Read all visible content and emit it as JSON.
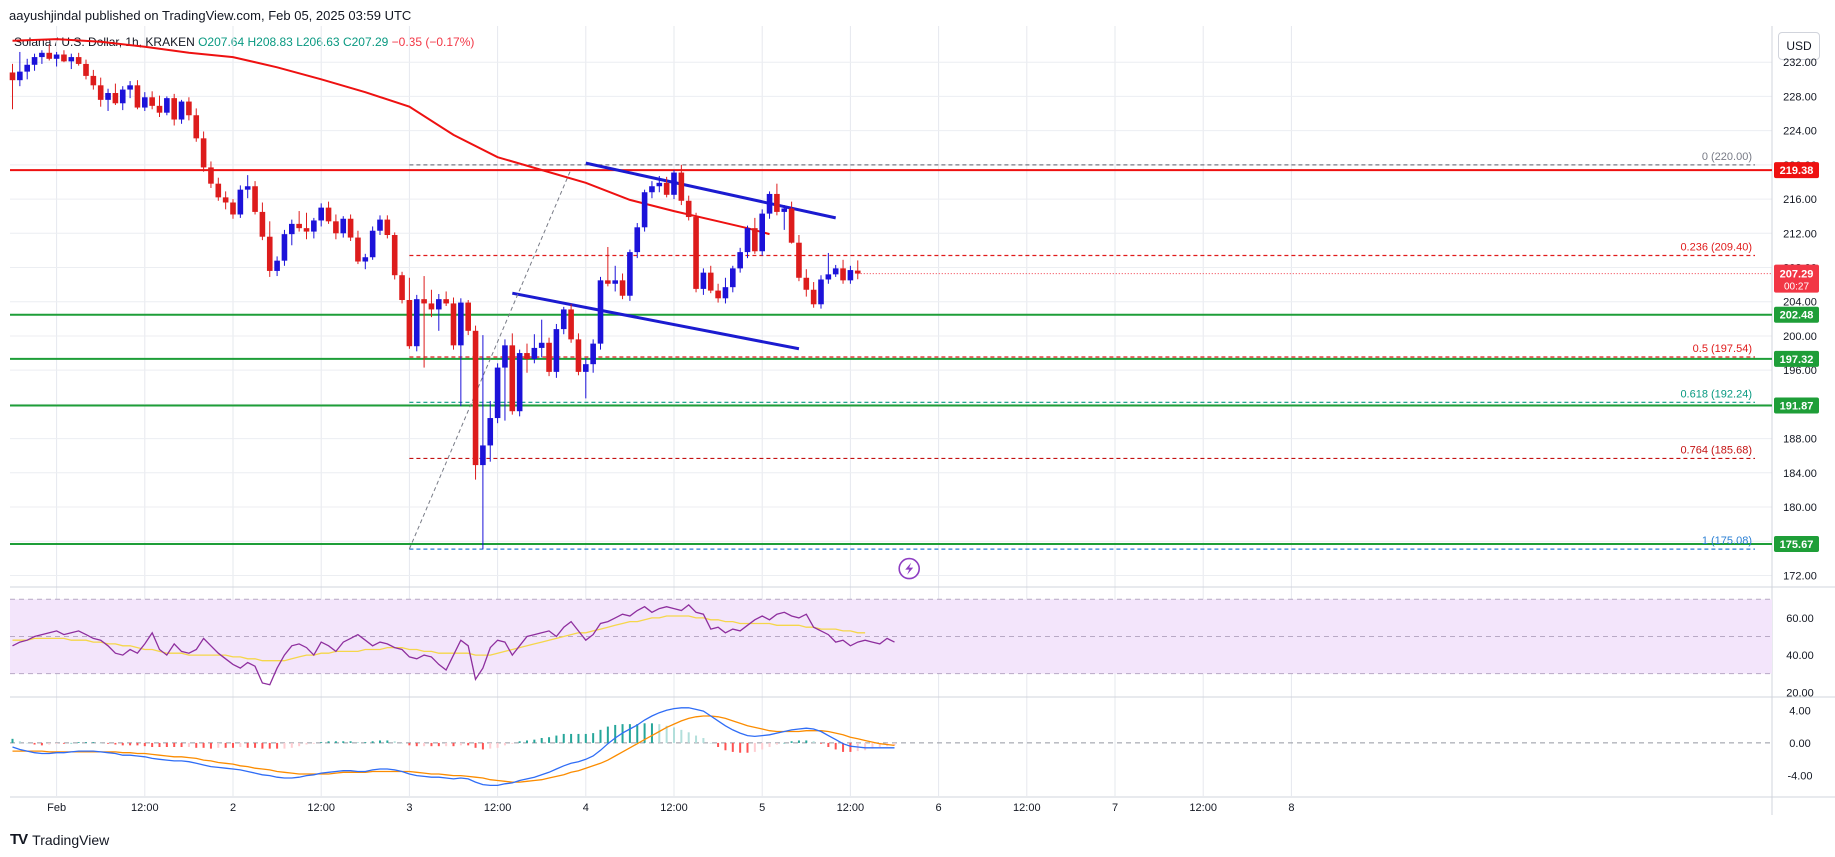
{
  "header": {
    "publisher": "aayushjindal published on TradingView.com, Feb 05, 2025 03:59 UTC",
    "pair": "Solana / U.S. Dollar, 1h, KRAKEN",
    "open": "O207.64",
    "high": "H208.83",
    "low": "L206.63",
    "close": "C207.29",
    "change": "−0.35 (−0.17%)",
    "currency": "USD"
  },
  "brand": {
    "name": "TradingView",
    "logo": "TV"
  },
  "colors": {
    "up": "#1c12d9",
    "down": "#dd1c1c",
    "ma": "#ee1111",
    "support": "#1e9e38",
    "resistance": "#ee1111",
    "channel": "#1b1bd0",
    "rsi": "#8e2f9e",
    "rsi_ma": "#f5d64a",
    "macd": "#2f6df6",
    "signal": "#fb8c00"
  },
  "chart_data": {
    "type": "candlestick",
    "title": "Solana / U.S. Dollar, 1h, KRAKEN",
    "ylim": [
      171,
      236
    ],
    "y_ticks": [
      172,
      176,
      180,
      184,
      188,
      192,
      196,
      200,
      204,
      208,
      212,
      216,
      220,
      224,
      228,
      232
    ],
    "x_ticks": [
      {
        "t": 6,
        "label": "Feb"
      },
      {
        "t": 18,
        "label": "12:00"
      },
      {
        "t": 30,
        "label": "2"
      },
      {
        "t": 42,
        "label": "12:00"
      },
      {
        "t": 54,
        "label": "3"
      },
      {
        "t": 66,
        "label": "12:00"
      },
      {
        "t": 78,
        "label": "4"
      },
      {
        "t": 90,
        "label": "12:00"
      },
      {
        "t": 102,
        "label": "5"
      },
      {
        "t": 114,
        "label": "12:00"
      },
      {
        "t": 126,
        "label": "6"
      },
      {
        "t": 138,
        "label": "12:00"
      },
      {
        "t": 150,
        "label": "7"
      },
      {
        "t": 162,
        "label": "12:00"
      },
      {
        "t": 174,
        "label": "8"
      }
    ],
    "candles": [
      [
        230.8,
        231.8,
        226.5,
        229.9
      ],
      [
        229.9,
        233.2,
        229.2,
        230.9
      ],
      [
        230.9,
        232.4,
        230.0,
        231.7
      ],
      [
        231.7,
        233.0,
        231.0,
        232.6
      ],
      [
        232.6,
        233.4,
        231.8,
        233.1
      ],
      [
        233.1,
        234.1,
        232.2,
        232.4
      ],
      [
        232.4,
        233.2,
        231.5,
        232.9
      ],
      [
        232.9,
        233.4,
        232.0,
        232.1
      ],
      [
        232.1,
        233.0,
        231.2,
        232.6
      ],
      [
        232.6,
        233.1,
        231.6,
        231.8
      ],
      [
        231.8,
        232.3,
        230.0,
        230.4
      ],
      [
        230.4,
        231.1,
        228.8,
        229.3
      ],
      [
        229.3,
        230.2,
        226.8,
        227.6
      ],
      [
        227.6,
        228.9,
        226.3,
        228.4
      ],
      [
        228.4,
        229.5,
        227.0,
        227.2
      ],
      [
        227.2,
        229.2,
        226.4,
        228.8
      ],
      [
        228.8,
        229.8,
        227.8,
        229.3
      ],
      [
        229.3,
        229.9,
        226.5,
        226.7
      ],
      [
        226.7,
        228.5,
        226.3,
        227.9
      ],
      [
        227.9,
        228.6,
        226.5,
        226.9
      ],
      [
        226.9,
        228.1,
        225.6,
        226.1
      ],
      [
        226.1,
        228.0,
        225.8,
        227.8
      ],
      [
        227.8,
        228.3,
        224.6,
        225.3
      ],
      [
        225.3,
        227.6,
        224.8,
        227.4
      ],
      [
        227.4,
        227.9,
        225.2,
        225.8
      ],
      [
        225.8,
        226.6,
        222.7,
        223.1
      ],
      [
        223.1,
        223.9,
        219.2,
        219.7
      ],
      [
        219.7,
        220.4,
        217.3,
        217.8
      ],
      [
        217.8,
        218.5,
        215.8,
        216.2
      ],
      [
        216.2,
        216.9,
        214.8,
        215.6
      ],
      [
        215.6,
        216.0,
        213.7,
        214.2
      ],
      [
        214.2,
        217.6,
        213.8,
        217.1
      ],
      [
        217.1,
        218.8,
        216.1,
        217.5
      ],
      [
        217.5,
        218.1,
        214.2,
        214.5
      ],
      [
        214.5,
        215.6,
        211.2,
        211.6
      ],
      [
        211.6,
        213.4,
        206.9,
        207.6
      ],
      [
        207.6,
        209.3,
        207.0,
        208.8
      ],
      [
        208.8,
        212.4,
        208.2,
        211.9
      ],
      [
        211.9,
        213.6,
        210.6,
        213.1
      ],
      [
        213.1,
        214.6,
        212.2,
        212.6
      ],
      [
        212.6,
        214.4,
        211.3,
        212.2
      ],
      [
        212.2,
        213.8,
        211.4,
        213.5
      ],
      [
        213.5,
        215.5,
        212.8,
        215.0
      ],
      [
        215.0,
        215.7,
        213.1,
        213.4
      ],
      [
        213.4,
        214.2,
        211.3,
        212.0
      ],
      [
        212.0,
        214.0,
        211.5,
        213.7
      ],
      [
        213.7,
        214.2,
        211.1,
        211.5
      ],
      [
        211.5,
        212.3,
        208.4,
        208.7
      ],
      [
        208.7,
        209.6,
        207.8,
        209.2
      ],
      [
        209.2,
        212.8,
        208.9,
        212.3
      ],
      [
        212.3,
        214.1,
        211.8,
        213.6
      ],
      [
        213.6,
        214.1,
        211.4,
        211.8
      ],
      [
        211.8,
        212.1,
        206.6,
        207.1
      ],
      [
        207.1,
        207.5,
        203.8,
        204.2
      ],
      [
        204.2,
        206.8,
        198.5,
        198.8
      ],
      [
        198.8,
        204.8,
        198.2,
        204.3
      ],
      [
        204.3,
        207.0,
        196.3,
        203.8
      ],
      [
        203.8,
        205.4,
        202.2,
        203.1
      ],
      [
        203.1,
        204.9,
        200.6,
        204.3
      ],
      [
        204.3,
        205.2,
        203.5,
        203.8
      ],
      [
        203.8,
        204.5,
        198.4,
        198.9
      ],
      [
        198.9,
        204.4,
        191.8,
        203.9
      ],
      [
        203.9,
        204.2,
        200.1,
        200.6
      ],
      [
        200.6,
        201.2,
        183.2,
        184.9
      ],
      [
        184.9,
        200.1,
        175.1,
        187.2
      ],
      [
        187.2,
        192.4,
        185.3,
        190.4
      ],
      [
        190.4,
        196.8,
        189.8,
        196.3
      ],
      [
        196.3,
        199.6,
        190.1,
        198.9
      ],
      [
        198.9,
        200.3,
        190.8,
        191.2
      ],
      [
        191.2,
        198.4,
        190.6,
        198.0
      ],
      [
        198.0,
        199.1,
        195.7,
        197.3
      ],
      [
        197.3,
        200.2,
        196.8,
        198.6
      ],
      [
        198.6,
        201.9,
        197.5,
        199.2
      ],
      [
        199.2,
        199.8,
        195.3,
        195.8
      ],
      [
        195.8,
        201.4,
        195.1,
        200.8
      ],
      [
        200.8,
        203.4,
        200.2,
        203.1
      ],
      [
        203.1,
        203.7,
        199.2,
        199.6
      ],
      [
        199.6,
        200.3,
        195.4,
        195.8
      ],
      [
        195.8,
        197.4,
        192.7,
        196.7
      ],
      [
        196.7,
        199.6,
        195.7,
        199.1
      ],
      [
        199.1,
        206.9,
        198.4,
        206.5
      ],
      [
        206.5,
        210.4,
        205.8,
        206.1
      ],
      [
        206.1,
        208.2,
        205.2,
        206.5
      ],
      [
        206.5,
        207.3,
        204.3,
        204.7
      ],
      [
        204.7,
        210.1,
        204.1,
        209.8
      ],
      [
        209.8,
        213.2,
        209.1,
        212.7
      ],
      [
        212.7,
        217.1,
        212.2,
        216.8
      ],
      [
        216.8,
        218.1,
        216.1,
        217.5
      ],
      [
        217.5,
        218.7,
        216.8,
        217.9
      ],
      [
        217.9,
        218.6,
        216.2,
        216.5
      ],
      [
        216.5,
        219.4,
        216.0,
        219.1
      ],
      [
        219.1,
        220.0,
        215.3,
        215.8
      ],
      [
        215.8,
        216.4,
        213.5,
        213.9
      ],
      [
        213.9,
        214.4,
        205.1,
        205.5
      ],
      [
        205.5,
        207.9,
        204.8,
        207.4
      ],
      [
        207.4,
        208.2,
        205.0,
        205.3
      ],
      [
        205.3,
        206.1,
        203.9,
        204.4
      ],
      [
        204.4,
        206.8,
        203.8,
        205.7
      ],
      [
        205.7,
        208.2,
        205.1,
        207.9
      ],
      [
        207.9,
        210.3,
        207.4,
        209.8
      ],
      [
        209.8,
        212.9,
        209.1,
        212.6
      ],
      [
        212.6,
        213.8,
        209.6,
        209.9
      ],
      [
        209.9,
        214.8,
        209.4,
        214.3
      ],
      [
        214.3,
        216.9,
        213.7,
        216.6
      ],
      [
        216.6,
        217.8,
        214.1,
        214.5
      ],
      [
        214.5,
        215.3,
        212.4,
        214.9
      ],
      [
        214.9,
        215.7,
        210.8,
        210.9
      ],
      [
        210.9,
        211.8,
        206.4,
        206.8
      ],
      [
        206.8,
        207.8,
        204.6,
        205.4
      ],
      [
        205.4,
        206.3,
        203.3,
        203.7
      ],
      [
        203.7,
        207.1,
        203.2,
        206.6
      ],
      [
        206.6,
        209.7,
        206.1,
        207.2
      ],
      [
        207.2,
        208.3,
        206.9,
        207.9
      ],
      [
        207.9,
        208.9,
        206.1,
        206.5
      ],
      [
        206.5,
        208.2,
        206.1,
        207.7
      ],
      [
        207.64,
        208.83,
        206.63,
        207.29
      ]
    ],
    "ma_line": [
      [
        0,
        234.5
      ],
      [
        6,
        234.7
      ],
      [
        12,
        234.4
      ],
      [
        18,
        233.8
      ],
      [
        24,
        233.1
      ],
      [
        30,
        232.6
      ],
      [
        36,
        231.4
      ],
      [
        42,
        230.0
      ],
      [
        48,
        228.5
      ],
      [
        54,
        226.8
      ],
      [
        60,
        223.5
      ],
      [
        66,
        220.9
      ],
      [
        72,
        219.4
      ],
      [
        78,
        217.9
      ],
      [
        84,
        215.9
      ],
      [
        90,
        214.6
      ],
      [
        96,
        213.4
      ],
      [
        100,
        212.6
      ],
      [
        103,
        211.9
      ]
    ],
    "horizontal_levels": [
      {
        "label": "219.38",
        "value": 219.38,
        "kind": "resistance"
      },
      {
        "label": "202.48",
        "value": 202.48,
        "kind": "support"
      },
      {
        "label": "197.32",
        "value": 197.32,
        "kind": "support"
      },
      {
        "label": "191.87",
        "value": 191.87,
        "kind": "support"
      },
      {
        "label": "175.67",
        "value": 175.67,
        "kind": "support"
      }
    ],
    "last_price": {
      "value": 207.29,
      "label": "207.29",
      "countdown": "00:27"
    },
    "fibonacci": {
      "from_t": 54,
      "to_t": 100,
      "levels": [
        {
          "ratio": "0",
          "value": 220.0,
          "text": "0 (220.00)"
        },
        {
          "ratio": "0.236",
          "value": 209.4,
          "text": "0.236 (209.40)"
        },
        {
          "ratio": "0.5",
          "value": 197.54,
          "text": "0.5 (197.54)"
        },
        {
          "ratio": "0.618",
          "value": 192.24,
          "text": "0.618 (192.24)"
        },
        {
          "ratio": "0.764",
          "value": 185.68,
          "text": "0.764 (185.68)"
        },
        {
          "ratio": "1",
          "value": 175.08,
          "text": "1 (175.08)"
        }
      ]
    },
    "trend_lines": [
      {
        "name": "channel-upper",
        "t1": 78,
        "p1": 220.2,
        "t2": 112,
        "p2": 213.8
      },
      {
        "name": "channel-lower",
        "t1": 68,
        "p1": 205.0,
        "t2": 107,
        "p2": 198.5
      },
      {
        "name": "fib-diagonal",
        "t1": 54,
        "p1": 175.1,
        "t2": 76,
        "p2": 219.5
      }
    ],
    "rsi": {
      "ylim": [
        18,
        75
      ],
      "ticks": [
        20,
        40,
        60
      ],
      "band": [
        30,
        70
      ],
      "values": [
        45,
        47,
        48,
        50,
        51,
        52,
        53,
        51,
        52,
        53,
        51,
        49,
        48,
        45,
        41,
        40,
        43,
        41,
        46,
        52,
        43,
        40,
        46,
        42,
        41,
        43,
        49,
        45,
        41,
        38,
        35,
        33,
        36,
        34,
        25,
        24,
        33,
        40,
        45,
        46,
        44,
        40,
        47,
        45,
        42,
        47,
        49,
        51,
        48,
        45,
        47,
        46,
        44,
        43,
        39,
        38,
        40,
        39,
        35,
        32,
        40,
        48,
        45,
        27,
        33,
        44,
        48,
        47,
        40,
        45,
        50,
        51,
        52,
        53,
        50,
        55,
        58,
        53,
        48,
        51,
        57,
        58,
        60,
        62,
        61,
        64,
        66,
        63,
        65,
        66,
        65,
        64,
        67,
        63,
        62,
        54,
        55,
        52,
        54,
        53,
        56,
        59,
        61,
        59,
        62,
        63,
        61,
        60,
        62,
        55,
        53,
        51,
        47,
        48,
        45,
        47,
        48,
        47,
        46,
        49,
        47
      ],
      "ma_values": [
        48,
        48,
        48,
        49,
        49,
        49,
        49,
        49,
        48,
        48,
        48,
        47,
        47,
        46,
        46,
        45,
        45,
        44,
        43,
        43,
        42,
        41,
        41,
        41,
        40,
        40,
        40,
        40,
        40,
        40,
        39,
        39,
        38,
        38,
        37,
        37,
        37,
        37,
        38,
        39,
        40,
        40,
        41,
        41,
        42,
        42,
        42,
        42,
        43,
        43,
        43,
        44,
        44,
        44,
        43,
        43,
        42,
        42,
        41,
        41,
        41,
        41,
        41,
        40,
        40,
        40,
        41,
        42,
        43,
        44,
        45,
        46,
        47,
        48,
        49,
        50,
        51,
        52,
        52,
        53,
        54,
        55,
        56,
        57,
        58,
        58,
        59,
        60,
        60,
        61,
        61,
        61,
        61,
        60,
        60,
        59,
        59,
        58,
        58,
        57,
        57,
        57,
        57,
        57,
        56,
        56,
        56,
        56,
        55,
        55,
        54,
        54,
        54,
        53,
        53,
        52,
        52
      ]
    },
    "macd": {
      "ylim": [
        -6.5,
        5.5
      ],
      "ticks": [
        4.0,
        0.0,
        -4.0
      ],
      "macd": [
        -0.5,
        -0.8,
        -1.0,
        -1.2,
        -1.3,
        -1.3,
        -1.2,
        -1.2,
        -1.1,
        -1.0,
        -1.0,
        -1.0,
        -1.1,
        -1.2,
        -1.3,
        -1.5,
        -1.5,
        -1.6,
        -1.7,
        -1.9,
        -2.0,
        -2.1,
        -2.2,
        -2.2,
        -2.3,
        -2.5,
        -2.7,
        -2.9,
        -3.0,
        -3.1,
        -3.2,
        -3.3,
        -3.5,
        -3.7,
        -3.9,
        -4.0,
        -4.2,
        -4.3,
        -4.3,
        -4.2,
        -4.0,
        -3.9,
        -3.7,
        -3.6,
        -3.5,
        -3.4,
        -3.4,
        -3.5,
        -3.5,
        -3.3,
        -3.2,
        -3.2,
        -3.3,
        -3.5,
        -3.8,
        -4.0,
        -4.1,
        -4.2,
        -4.2,
        -4.3,
        -4.4,
        -4.3,
        -4.4,
        -4.8,
        -5.1,
        -5.2,
        -5.2,
        -5.0,
        -4.9,
        -4.6,
        -4.4,
        -4.2,
        -3.9,
        -3.6,
        -3.2,
        -2.8,
        -2.5,
        -2.3,
        -2.0,
        -1.6,
        -0.9,
        -0.1,
        0.6,
        1.2,
        1.7,
        2.2,
        2.8,
        3.3,
        3.7,
        4.0,
        4.2,
        4.3,
        4.3,
        4.1,
        3.9,
        3.3,
        2.7,
        2.1,
        1.6,
        1.2,
        0.9,
        0.8,
        0.9,
        1.0,
        1.2,
        1.4,
        1.6,
        1.7,
        1.8,
        1.7,
        1.4,
        0.9,
        0.4,
        -0.1,
        -0.4,
        -0.5,
        -0.6,
        -0.6,
        -0.6,
        -0.6,
        -0.6
      ],
      "signal": [
        -1.0,
        -1.0,
        -1.0,
        -1.0,
        -1.0,
        -1.1,
        -1.1,
        -1.1,
        -1.1,
        -1.1,
        -1.1,
        -1.1,
        -1.1,
        -1.1,
        -1.1,
        -1.2,
        -1.2,
        -1.3,
        -1.3,
        -1.4,
        -1.5,
        -1.6,
        -1.7,
        -1.7,
        -1.8,
        -1.9,
        -2.1,
        -2.2,
        -2.4,
        -2.5,
        -2.6,
        -2.8,
        -2.9,
        -3.1,
        -3.2,
        -3.3,
        -3.5,
        -3.6,
        -3.7,
        -3.8,
        -3.8,
        -3.8,
        -3.8,
        -3.8,
        -3.7,
        -3.6,
        -3.6,
        -3.6,
        -3.6,
        -3.5,
        -3.5,
        -3.5,
        -3.5,
        -3.5,
        -3.5,
        -3.6,
        -3.7,
        -3.8,
        -3.8,
        -3.9,
        -4.0,
        -4.0,
        -4.1,
        -4.2,
        -4.3,
        -4.5,
        -4.6,
        -4.7,
        -4.8,
        -4.8,
        -4.7,
        -4.6,
        -4.5,
        -4.3,
        -4.1,
        -3.9,
        -3.6,
        -3.4,
        -3.1,
        -2.8,
        -2.5,
        -2.1,
        -1.6,
        -1.1,
        -0.6,
        -0.1,
        0.4,
        0.9,
        1.4,
        1.9,
        2.3,
        2.7,
        3.0,
        3.2,
        3.3,
        3.3,
        3.2,
        3.0,
        2.7,
        2.4,
        2.1,
        1.9,
        1.7,
        1.5,
        1.4,
        1.4,
        1.4,
        1.4,
        1.5,
        1.5,
        1.5,
        1.4,
        1.2,
        1.0,
        0.7,
        0.5,
        0.3,
        0.1,
        -0.1,
        -0.2,
        -0.3
      ]
    }
  }
}
